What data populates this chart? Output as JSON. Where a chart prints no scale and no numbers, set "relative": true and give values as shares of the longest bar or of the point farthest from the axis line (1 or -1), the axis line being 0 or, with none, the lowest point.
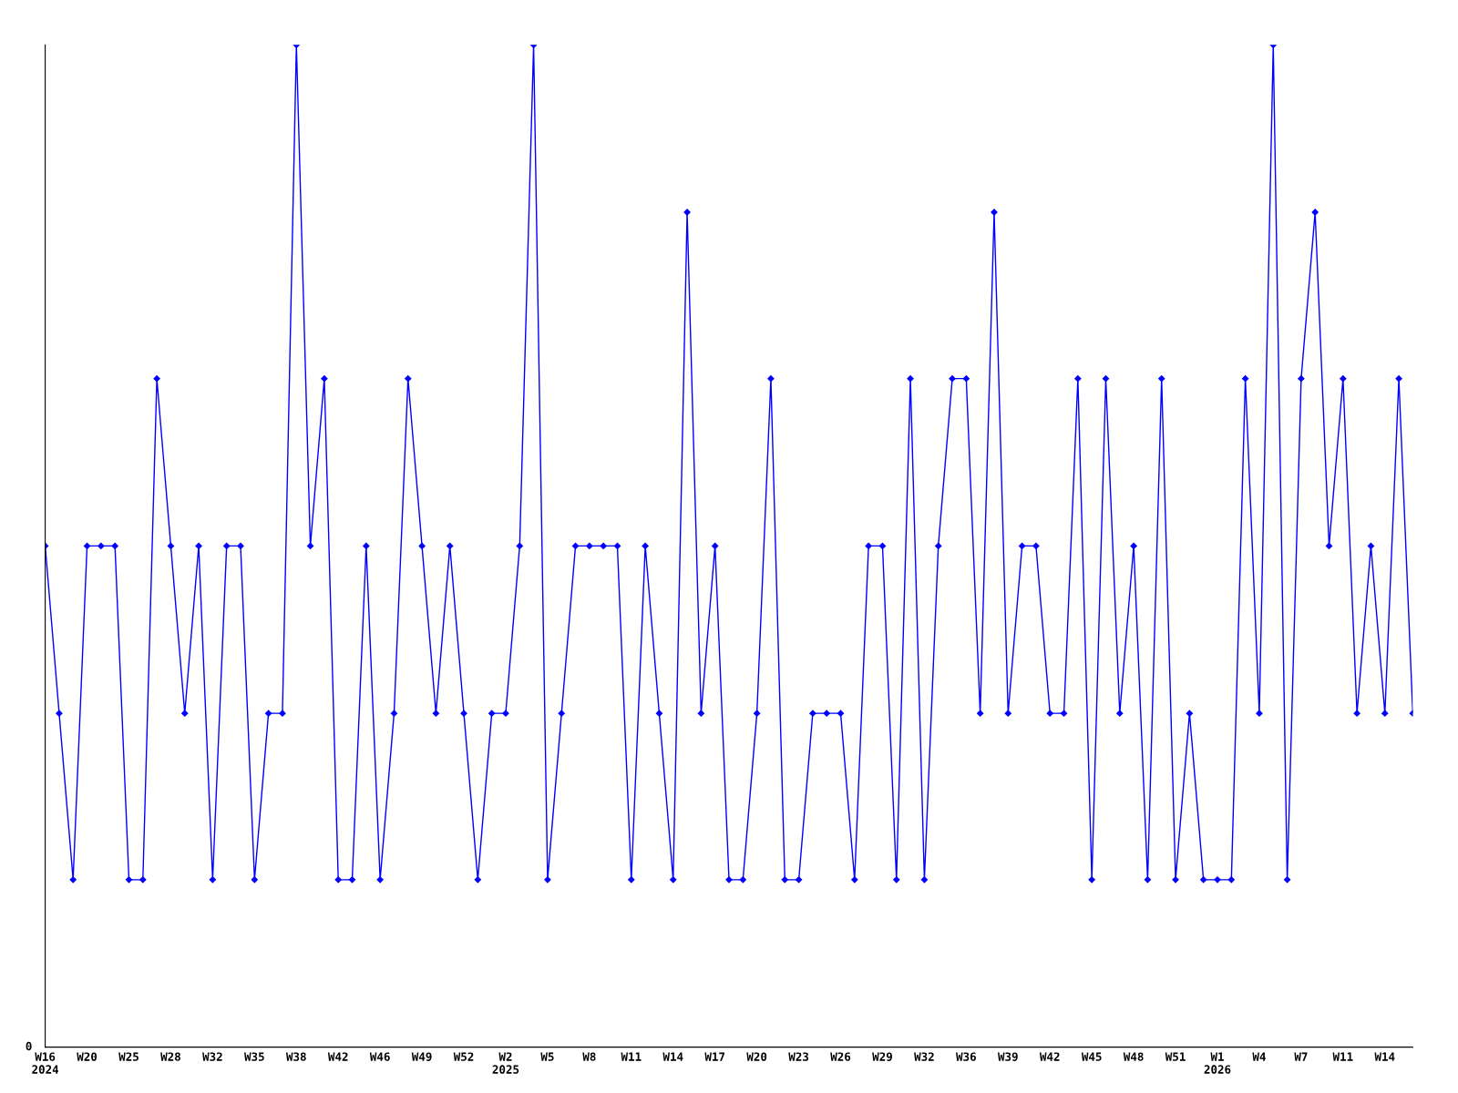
{
  "chart_data": {
    "type": "line",
    "relative": true,
    "color": "#0000ff",
    "marker": "diamond",
    "line_style": "solid",
    "grid": false,
    "legend": false,
    "annotations": [
      "0"
    ],
    "categories": [
      "W16\n2024",
      null,
      null,
      "W20",
      null,
      null,
      "W25",
      null,
      null,
      "W28",
      null,
      null,
      "W32",
      null,
      null,
      "W35",
      null,
      null,
      "W38",
      null,
      null,
      "W42",
      null,
      null,
      "W46",
      null,
      null,
      "W49",
      null,
      null,
      "W52",
      null,
      null,
      "W2\n2025",
      null,
      null,
      "W5",
      null,
      null,
      "W8",
      null,
      null,
      "W11",
      null,
      null,
      "W14",
      null,
      null,
      "W17",
      null,
      null,
      "W20",
      null,
      null,
      "W23",
      null,
      null,
      "W26",
      null,
      null,
      "W29",
      null,
      null,
      "W32",
      null,
      null,
      "W36",
      null,
      null,
      "W39",
      null,
      null,
      "W42",
      null,
      null,
      "W45",
      null,
      null,
      "W48",
      null,
      null,
      "W51",
      null,
      null,
      "W1\n2026",
      null,
      null,
      "W4",
      null,
      null,
      "W7",
      null,
      null,
      "W11",
      null,
      null,
      "W14",
      null,
      null
    ],
    "values": [
      0.5,
      0.333,
      0.167,
      0.5,
      0.5,
      0.5,
      0.167,
      0.167,
      0.667,
      0.5,
      0.333,
      0.5,
      0.167,
      0.5,
      0.5,
      0.167,
      0.333,
      0.333,
      1,
      0.5,
      0.667,
      0.167,
      0.167,
      0.5,
      0.167,
      0.333,
      0.667,
      0.5,
      0.333,
      0.5,
      0.333,
      0.167,
      0.333,
      0.333,
      0.5,
      1,
      0.167,
      0.333,
      0.5,
      0.5,
      0.5,
      0.5,
      0.167,
      0.5,
      0.333,
      0.167,
      0.833,
      0.333,
      0.5,
      0.167,
      0.167,
      0.333,
      0.667,
      0.167,
      0.167,
      0.333,
      0.333,
      0.333,
      0.167,
      0.5,
      0.5,
      0.167,
      0.667,
      0.167,
      0.5,
      0.667,
      0.667,
      0.333,
      0.833,
      0.333,
      0.5,
      0.5,
      0.333,
      0.333,
      0.667,
      0.167,
      0.667,
      0.333,
      0.5,
      0.167,
      0.667,
      0.167,
      0.333,
      0.167,
      0.167,
      0.167,
      0.667,
      0.333,
      1,
      0.167,
      0.667,
      0.833,
      0.5,
      0.667,
      0.333,
      0.5,
      0.333,
      0.667,
      0.333
    ]
  }
}
